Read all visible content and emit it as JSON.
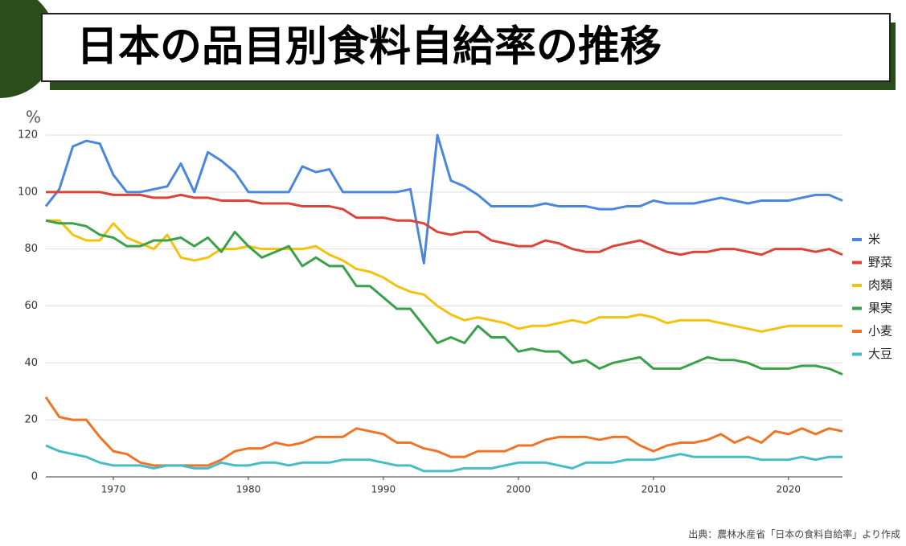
{
  "chart_data": {
    "type": "line",
    "title": "日本の品目別食料自給率の推移",
    "y_label": "%",
    "source": "出典：農林水産省「日本の食料自給率」より作成",
    "x": [
      1965,
      1966,
      1967,
      1968,
      1969,
      1970,
      1971,
      1972,
      1973,
      1974,
      1975,
      1976,
      1977,
      1978,
      1979,
      1980,
      1981,
      1982,
      1983,
      1984,
      1985,
      1986,
      1987,
      1988,
      1989,
      1990,
      1991,
      1992,
      1993,
      1994,
      1995,
      1996,
      1997,
      1998,
      1999,
      2000,
      2001,
      2002,
      2003,
      2004,
      2005,
      2006,
      2007,
      2008,
      2009,
      2010,
      2011,
      2012,
      2013,
      2014,
      2015,
      2016,
      2017,
      2018,
      2019,
      2020,
      2021,
      2022,
      2023,
      2024
    ],
    "xlim": [
      1965,
      2024
    ],
    "xticks": [
      1970,
      1980,
      1990,
      2000,
      2010,
      2020
    ],
    "ylim": [
      0,
      120
    ],
    "yticks": [
      0,
      20,
      40,
      60,
      80,
      100,
      120
    ],
    "grid": true,
    "legend": "right",
    "series": [
      {
        "name": "米",
        "color": "#4a86e0",
        "values": [
          95,
          101,
          116,
          118,
          117,
          106,
          100,
          100,
          101,
          102,
          110,
          100,
          114,
          111,
          107,
          100,
          100,
          100,
          100,
          109,
          107,
          108,
          100,
          100,
          100,
          100,
          100,
          101,
          75,
          120,
          104,
          102,
          99,
          95,
          95,
          95,
          95,
          96,
          95,
          95,
          95,
          94,
          94,
          95,
          95,
          97,
          96,
          96,
          96,
          97,
          98,
          97,
          96,
          97,
          97,
          97,
          98,
          99,
          99,
          97
        ]
      },
      {
        "name": "野菜",
        "color": "#db4437",
        "values": [
          100,
          100,
          100,
          100,
          100,
          99,
          99,
          99,
          98,
          98,
          99,
          98,
          98,
          97,
          97,
          97,
          96,
          96,
          96,
          95,
          95,
          95,
          94,
          91,
          91,
          91,
          90,
          90,
          89,
          86,
          85,
          86,
          86,
          83,
          82,
          81,
          81,
          83,
          82,
          80,
          79,
          79,
          81,
          82,
          83,
          81,
          79,
          78,
          79,
          79,
          80,
          80,
          79,
          78,
          80,
          80,
          80,
          79,
          80,
          78
        ]
      },
      {
        "name": "肉類",
        "color": "#f4c20d",
        "values": [
          90,
          90,
          85,
          83,
          83,
          89,
          84,
          82,
          80,
          85,
          77,
          76,
          77,
          80,
          80,
          81,
          80,
          80,
          80,
          80,
          81,
          78,
          76,
          73,
          72,
          70,
          67,
          65,
          64,
          60,
          57,
          55,
          56,
          55,
          54,
          52,
          53,
          53,
          54,
          55,
          54,
          56,
          56,
          56,
          57,
          56,
          54,
          55,
          55,
          55,
          54,
          53,
          52,
          51,
          52,
          53,
          53,
          53,
          53,
          53
        ]
      },
      {
        "name": "果実",
        "color": "#3aa04a",
        "values": [
          90,
          89,
          89,
          88,
          85,
          84,
          81,
          81,
          83,
          83,
          84,
          81,
          84,
          79,
          86,
          81,
          77,
          79,
          81,
          74,
          77,
          74,
          74,
          67,
          67,
          63,
          59,
          59,
          53,
          47,
          49,
          47,
          53,
          49,
          49,
          44,
          45,
          44,
          44,
          40,
          41,
          38,
          40,
          41,
          42,
          38,
          38,
          38,
          40,
          42,
          41,
          41,
          40,
          38,
          38,
          38,
          39,
          39,
          38,
          36
        ]
      },
      {
        "name": "小麦",
        "color": "#ef7426",
        "values": [
          28,
          21,
          20,
          20,
          14,
          9,
          8,
          5,
          4,
          4,
          4,
          4,
          4,
          6,
          9,
          10,
          10,
          12,
          11,
          12,
          14,
          14,
          14,
          17,
          16,
          15,
          12,
          12,
          10,
          9,
          7,
          7,
          9,
          9,
          9,
          11,
          11,
          13,
          14,
          14,
          14,
          13,
          14,
          14,
          11,
          9,
          11,
          12,
          12,
          13,
          15,
          12,
          14,
          12,
          16,
          15,
          17,
          15,
          17,
          16
        ]
      },
      {
        "name": "大豆",
        "color": "#46bdc6",
        "values": [
          11,
          9,
          8,
          7,
          5,
          4,
          4,
          4,
          3,
          4,
          4,
          3,
          3,
          5,
          4,
          4,
          5,
          5,
          4,
          5,
          5,
          5,
          6,
          6,
          6,
          5,
          4,
          4,
          2,
          2,
          2,
          3,
          3,
          3,
          4,
          5,
          5,
          5,
          4,
          3,
          5,
          5,
          5,
          6,
          6,
          6,
          7,
          8,
          7,
          7,
          7,
          7,
          7,
          6,
          6,
          6,
          7,
          6,
          7,
          7
        ]
      }
    ]
  }
}
